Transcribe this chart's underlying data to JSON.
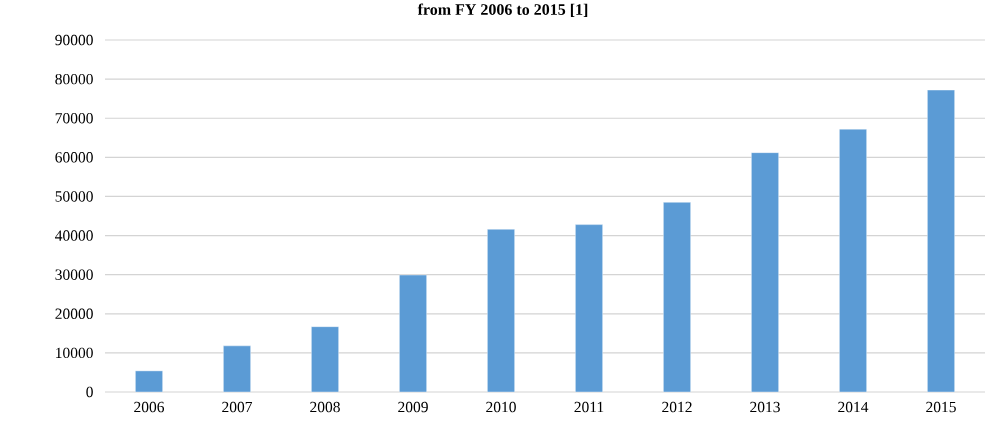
{
  "chart_data": {
    "type": "bar",
    "title": "from FY 2006 to 2015 [1]",
    "categories": [
      "2006",
      "2007",
      "2008",
      "2009",
      "2010",
      "2011",
      "2012",
      "2013",
      "2014",
      "2015"
    ],
    "values": [
      5400,
      11800,
      16700,
      29900,
      41600,
      42800,
      48500,
      61200,
      67200,
      77200
    ],
    "color": "#5b9bd5",
    "ylim": [
      0,
      90000
    ],
    "yticks": [
      0,
      10000,
      20000,
      30000,
      40000,
      50000,
      60000,
      70000,
      80000,
      90000
    ],
    "grid": "y"
  }
}
